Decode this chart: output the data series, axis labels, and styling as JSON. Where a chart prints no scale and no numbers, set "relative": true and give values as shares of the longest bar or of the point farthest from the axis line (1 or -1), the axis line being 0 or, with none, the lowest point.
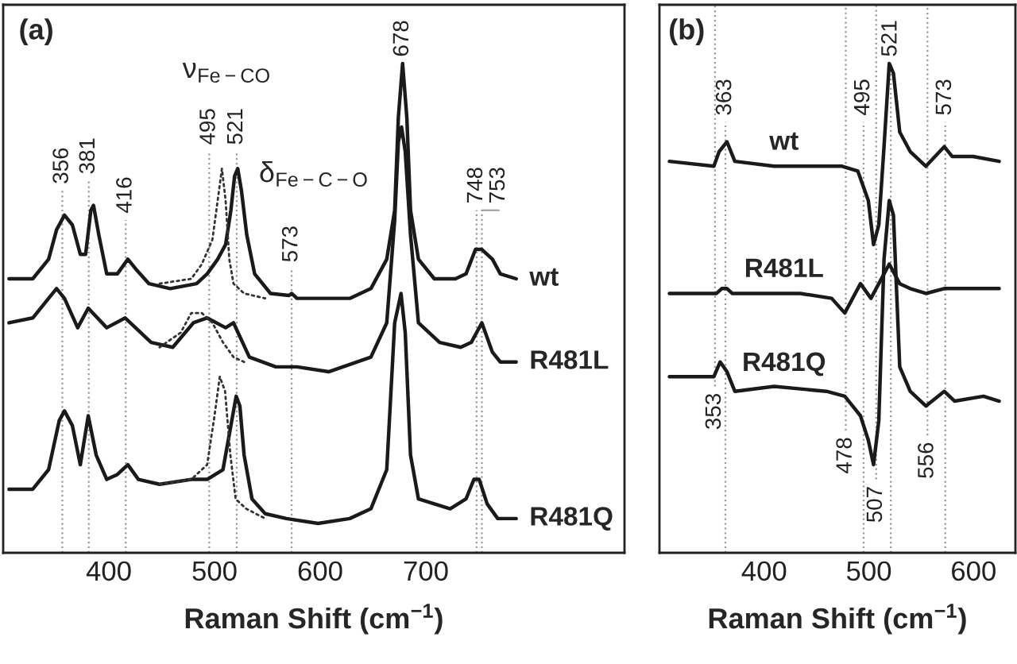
{
  "chart_data": [
    {
      "type": "line",
      "title": "(a)",
      "xlabel": "Raman Shift (cm$^{−1}$)",
      "relative": true,
      "tick_labels": "x",
      "xlim": [
        300,
        888
      ],
      "xticks": [
        400,
        500,
        600,
        700
      ],
      "series": [
        {
          "name": "wt",
          "color": "#1a1a1a",
          "line_style": "solid",
          "x": [
            305.5,
            328,
            343,
            350.5,
            358,
            365.5,
            373,
            378,
            383,
            385.5,
            390.5,
            398,
            408,
            418,
            425.5,
            438,
            458,
            483,
            493,
            503,
            510.5,
            515.5,
            519,
            522,
            525.5,
            530.5,
            538,
            553,
            570.5,
            573,
            578,
            598,
            628,
            648,
            663,
            670.5,
            674,
            678,
            682,
            685.5,
            693,
            708,
            728,
            738,
            747,
            753,
            763,
            770.5,
            785.5
          ],
          "values": [
            0.56,
            0.56,
            0.6,
            0.66,
            0.69,
            0.67,
            0.61,
            0.61,
            0.7,
            0.71,
            0.65,
            0.57,
            0.57,
            0.6,
            0.58,
            0.55,
            0.54,
            0.55,
            0.57,
            0.6,
            0.63,
            0.7,
            0.77,
            0.785,
            0.74,
            0.65,
            0.57,
            0.53,
            0.526,
            0.53,
            0.52,
            0.52,
            0.52,
            0.54,
            0.6,
            0.7,
            0.89,
            1.0,
            0.89,
            0.7,
            0.6,
            0.56,
            0.56,
            0.57,
            0.62,
            0.62,
            0.6,
            0.57,
            0.56
          ]
        },
        {
          "color": "#333333",
          "line_style": "dotted",
          "x": [
            448,
            478,
            488,
            498,
            503,
            507,
            510.5,
            514,
            518,
            528,
            548
          ],
          "values": [
            0.55,
            0.56,
            0.59,
            0.64,
            0.72,
            0.785,
            0.72,
            0.6,
            0.55,
            0.53,
            0.52
          ]
        },
        {
          "name": "R481L",
          "color": "#1a1a1a",
          "line_style": "solid",
          "x": [
            305.5,
            328,
            343,
            350.5,
            358,
            370.5,
            380.5,
            398,
            415.5,
            440,
            460.5,
            480,
            493,
            510.5,
            518,
            533,
            558,
            578,
            608,
            648,
            663,
            670.5,
            674,
            677,
            680.5,
            685.5,
            693,
            708,
            713,
            733,
            743,
            753,
            763,
            770.5,
            785.5
          ],
          "values": [
            0.47,
            0.48,
            0.52,
            0.54,
            0.52,
            0.46,
            0.5,
            0.46,
            0.48,
            0.43,
            0.42,
            0.47,
            0.48,
            0.46,
            0.47,
            0.4,
            0.38,
            0.38,
            0.37,
            0.4,
            0.47,
            0.68,
            0.84,
            0.87,
            0.82,
            0.65,
            0.47,
            0.44,
            0.43,
            0.42,
            0.43,
            0.47,
            0.41,
            0.39,
            0.39
          ]
        },
        {
          "color": "#333333",
          "line_style": "dotted",
          "x": [
            448,
            468,
            478,
            488,
            498,
            508,
            518,
            528
          ],
          "values": [
            0.42,
            0.45,
            0.49,
            0.49,
            0.47,
            0.43,
            0.4,
            0.39
          ]
        },
        {
          "name": "R481Q",
          "color": "#1a1a1a",
          "line_style": "solid",
          "x": [
            305.5,
            328,
            343,
            353,
            358,
            365.5,
            373,
            380.5,
            388,
            398,
            408,
            418,
            428,
            448,
            478,
            493,
            508,
            515.5,
            520.5,
            524,
            528,
            535.5,
            548,
            568,
            598,
            628,
            648,
            663,
            670.5,
            676.5,
            680.5,
            685.5,
            693,
            708,
            723,
            738,
            745.5,
            750.5,
            758,
            768,
            785.5
          ],
          "values": [
            0.13,
            0.13,
            0.17,
            0.27,
            0.29,
            0.26,
            0.18,
            0.28,
            0.2,
            0.15,
            0.16,
            0.18,
            0.15,
            0.14,
            0.15,
            0.15,
            0.17,
            0.26,
            0.32,
            0.3,
            0.2,
            0.11,
            0.08,
            0.07,
            0.06,
            0.07,
            0.09,
            0.17,
            0.47,
            0.53,
            0.45,
            0.2,
            0.11,
            0.1,
            0.09,
            0.11,
            0.15,
            0.15,
            0.1,
            0.07,
            0.07
          ]
        },
        {
          "color": "#333333",
          "line_style": "dotted",
          "x": [
            448,
            478,
            493,
            500,
            505,
            510,
            515,
            520,
            530,
            548
          ],
          "values": [
            0.14,
            0.15,
            0.18,
            0.28,
            0.36,
            0.33,
            0.2,
            0.11,
            0.09,
            0.07
          ]
        }
      ],
      "ref_lines": [
        {
          "axis": "x",
          "value": 356,
          "line_style": "dotted",
          "color": "#999999"
        },
        {
          "axis": "x",
          "value": 381,
          "line_style": "dotted",
          "color": "#999999"
        },
        {
          "axis": "x",
          "value": 416,
          "line_style": "dotted",
          "color": "#999999"
        },
        {
          "axis": "x",
          "value": 495,
          "line_style": "dotted",
          "color": "#999999"
        },
        {
          "axis": "x",
          "value": 521,
          "line_style": "dotted",
          "color": "#999999"
        },
        {
          "axis": "x",
          "value": 573,
          "line_style": "dotted",
          "color": "#999999"
        },
        {
          "axis": "x",
          "value": 748,
          "line_style": "dotted",
          "color": "#999999"
        },
        {
          "axis": "x",
          "value": 753,
          "line_style": "dotted",
          "color": "#999999"
        }
      ],
      "annotations": [
        "ν$_{Fe−CO}$",
        "δ$_{Fe−C−O}$",
        {
          "text": "356",
          "x": 356,
          "y": 0.74
        },
        {
          "text": "381",
          "x": 381,
          "y": 0.76
        },
        {
          "text": "416",
          "x": 416,
          "y": 0.68
        },
        {
          "text": "495",
          "x": 495,
          "y": 0.82
        },
        {
          "text": "521",
          "x": 521,
          "y": 0.82
        },
        {
          "text": "573",
          "x": 573,
          "y": 0.58
        },
        {
          "text": "678",
          "x": 678,
          "y": 1.0
        },
        {
          "text": "748",
          "x": 748,
          "y": 0.7
        },
        {
          "text": "753",
          "x": 753,
          "y": 0.7
        }
      ]
    },
    {
      "type": "line",
      "title": "(b)",
      "xlabel": "Raman Shift (cm$^{−1}$)",
      "relative": true,
      "tick_labels": "x",
      "xlim": [
        300,
        640
      ],
      "xticks": [
        400,
        500,
        600
      ],
      "series": [
        {
          "name": "wt",
          "color": "#1a1a1a",
          "line_style": "solid",
          "x": [
            309.5,
            352,
            357,
            364.5,
            372,
            409.5,
            474.5,
            489.5,
            499.5,
            504.5,
            509.5,
            514.5,
            519.5,
            523.5,
            529.5,
            539.5,
            554.5,
            572,
            579.5,
            599.5,
            624.5
          ],
          "values": [
            0.8,
            0.79,
            0.82,
            0.84,
            0.8,
            0.79,
            0.79,
            0.78,
            0.72,
            0.63,
            0.67,
            0.83,
            1.0,
            0.98,
            0.86,
            0.82,
            0.79,
            0.83,
            0.81,
            0.81,
            0.8
          ]
        },
        {
          "name": "R481L",
          "color": "#1a1a1a",
          "line_style": "solid",
          "x": [
            309.5,
            354.5,
            359.5,
            364.5,
            369.5,
            434.5,
            464.5,
            477,
            492,
            502,
            519.5,
            529.5,
            539.5,
            554.5,
            572,
            599.5,
            624.5
          ],
          "values": [
            0.53,
            0.53,
            0.54,
            0.54,
            0.53,
            0.53,
            0.52,
            0.49,
            0.55,
            0.52,
            0.59,
            0.55,
            0.54,
            0.53,
            0.54,
            0.54,
            0.54
          ]
        },
        {
          "name": "R481Q",
          "color": "#1a1a1a",
          "line_style": "solid",
          "x": [
            309.5,
            352,
            358,
            364.5,
            372,
            409.5,
            459.5,
            477,
            492,
            499.5,
            504.5,
            509.5,
            514.5,
            519.5,
            523.5,
            529.5,
            539.5,
            554.5,
            572,
            582,
            609.5,
            624.5
          ],
          "values": [
            0.36,
            0.36,
            0.39,
            0.37,
            0.33,
            0.34,
            0.33,
            0.32,
            0.28,
            0.23,
            0.18,
            0.27,
            0.6,
            0.72,
            0.69,
            0.38,
            0.33,
            0.3,
            0.33,
            0.31,
            0.32,
            0.31
          ]
        }
      ],
      "ref_lines": [
        {
          "axis": "x",
          "value": 353,
          "line_style": "dotted",
          "color": "#999999"
        },
        {
          "axis": "x",
          "value": 363,
          "line_style": "dotted",
          "color": "#999999"
        },
        {
          "axis": "x",
          "value": 478,
          "line_style": "dotted",
          "color": "#999999"
        },
        {
          "axis": "x",
          "value": 495,
          "line_style": "dotted",
          "color": "#999999"
        },
        {
          "axis": "x",
          "value": 507,
          "line_style": "dotted",
          "color": "#999999"
        },
        {
          "axis": "x",
          "value": 521,
          "line_style": "dotted",
          "color": "#999999"
        },
        {
          "axis": "x",
          "value": 556,
          "line_style": "dotted",
          "color": "#999999"
        },
        {
          "axis": "x",
          "value": 573,
          "line_style": "dotted",
          "color": "#999999"
        }
      ],
      "annotations": [
        {
          "text": "353",
          "x": 353,
          "y": 0.34
        },
        {
          "text": "363",
          "x": 363,
          "y": 0.88
        },
        {
          "text": "478",
          "x": 478,
          "y": 0.25
        },
        {
          "text": "495",
          "x": 495,
          "y": 0.88
        },
        {
          "text": "507",
          "x": 507,
          "y": 0.15
        },
        {
          "text": "521",
          "x": 521,
          "y": 1.0
        },
        {
          "text": "556",
          "x": 556,
          "y": 0.24
        },
        {
          "text": "573",
          "x": 573,
          "y": 0.88
        }
      ]
    }
  ]
}
